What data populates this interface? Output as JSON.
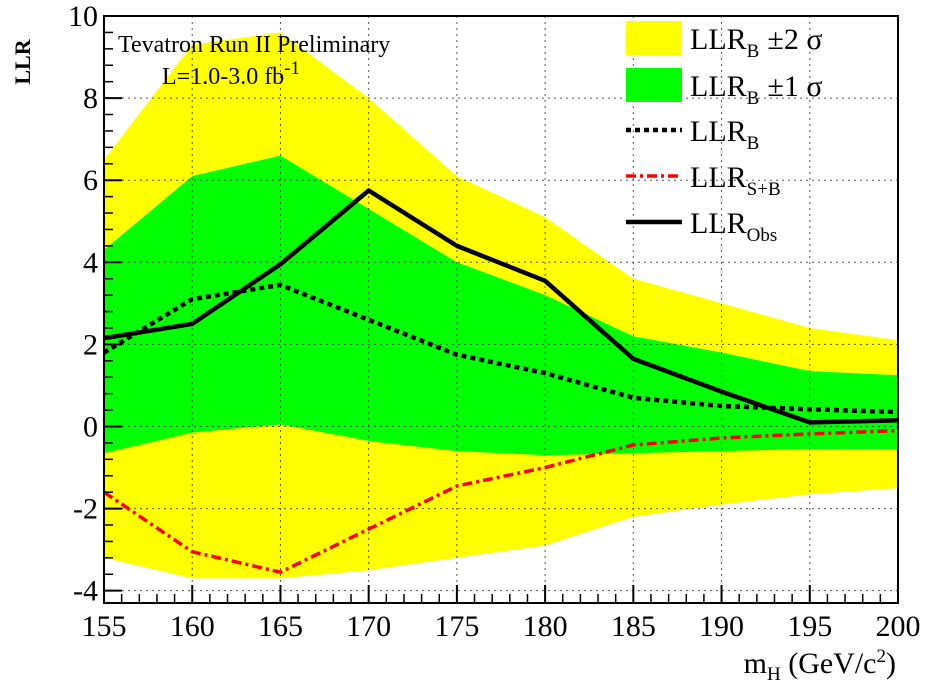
{
  "chart_data": {
    "type": "line",
    "xlabel": "m",
    "xlabel_sub": "H",
    "xlabel_unit_pre": " (GeV/c",
    "xlabel_unit_sup": "2",
    "xlabel_unit_post": ")",
    "ylabel": "LLR",
    "xlim": [
      155,
      200
    ],
    "ylim": [
      -4.3,
      10
    ],
    "x_ticks": [
      155,
      160,
      165,
      170,
      175,
      180,
      185,
      190,
      195,
      200
    ],
    "y_ticks": [
      -4,
      -2,
      0,
      2,
      4,
      6,
      8,
      10
    ],
    "grid": true,
    "annotations": {
      "line1": "Tevatron Run II Preliminary",
      "line2_main": "L=1.0-3.0 fb",
      "line2_sup": "-1"
    },
    "legend_position": "top-right",
    "x": [
      155,
      160,
      165,
      170,
      175,
      180,
      185,
      190,
      195,
      200
    ],
    "bands": [
      {
        "name": "LLR",
        "name_sub": "B",
        "suffix": "±2 σ",
        "color": "#ffff00",
        "upper": [
          6.5,
          9.3,
          9.6,
          8.0,
          6.1,
          5.1,
          3.6,
          3.0,
          2.4,
          2.1
        ],
        "lower": [
          -3.2,
          -3.7,
          -3.7,
          -3.5,
          -3.2,
          -2.9,
          -2.2,
          -1.9,
          -1.65,
          -1.5
        ]
      },
      {
        "name": "LLR",
        "name_sub": "B",
        "suffix": "±1 σ",
        "color": "#00ff00",
        "upper": [
          4.3,
          6.1,
          6.6,
          5.3,
          4.0,
          3.2,
          2.2,
          1.8,
          1.35,
          1.25
        ],
        "lower": [
          -0.65,
          -0.15,
          0.05,
          -0.35,
          -0.6,
          -0.7,
          -0.65,
          -0.6,
          -0.55,
          -0.55
        ]
      }
    ],
    "series": [
      {
        "name": "LLR",
        "name_sub": "B",
        "style": "dotted",
        "color": "#000000",
        "values": [
          1.8,
          3.1,
          3.45,
          2.6,
          1.75,
          1.3,
          0.7,
          0.5,
          0.42,
          0.35
        ]
      },
      {
        "name": "LLR",
        "name_sub": "S+B",
        "style": "dashdot",
        "color": "#ff0000",
        "values": [
          -1.6,
          -3.05,
          -3.55,
          -2.5,
          -1.45,
          -1.0,
          -0.45,
          -0.28,
          -0.18,
          -0.1
        ]
      },
      {
        "name": "LLR",
        "name_sub": "Obs",
        "style": "solid",
        "color": "#000000",
        "values": [
          2.15,
          2.5,
          3.95,
          5.75,
          4.4,
          3.55,
          1.65,
          0.85,
          0.1,
          0.15
        ]
      }
    ]
  }
}
